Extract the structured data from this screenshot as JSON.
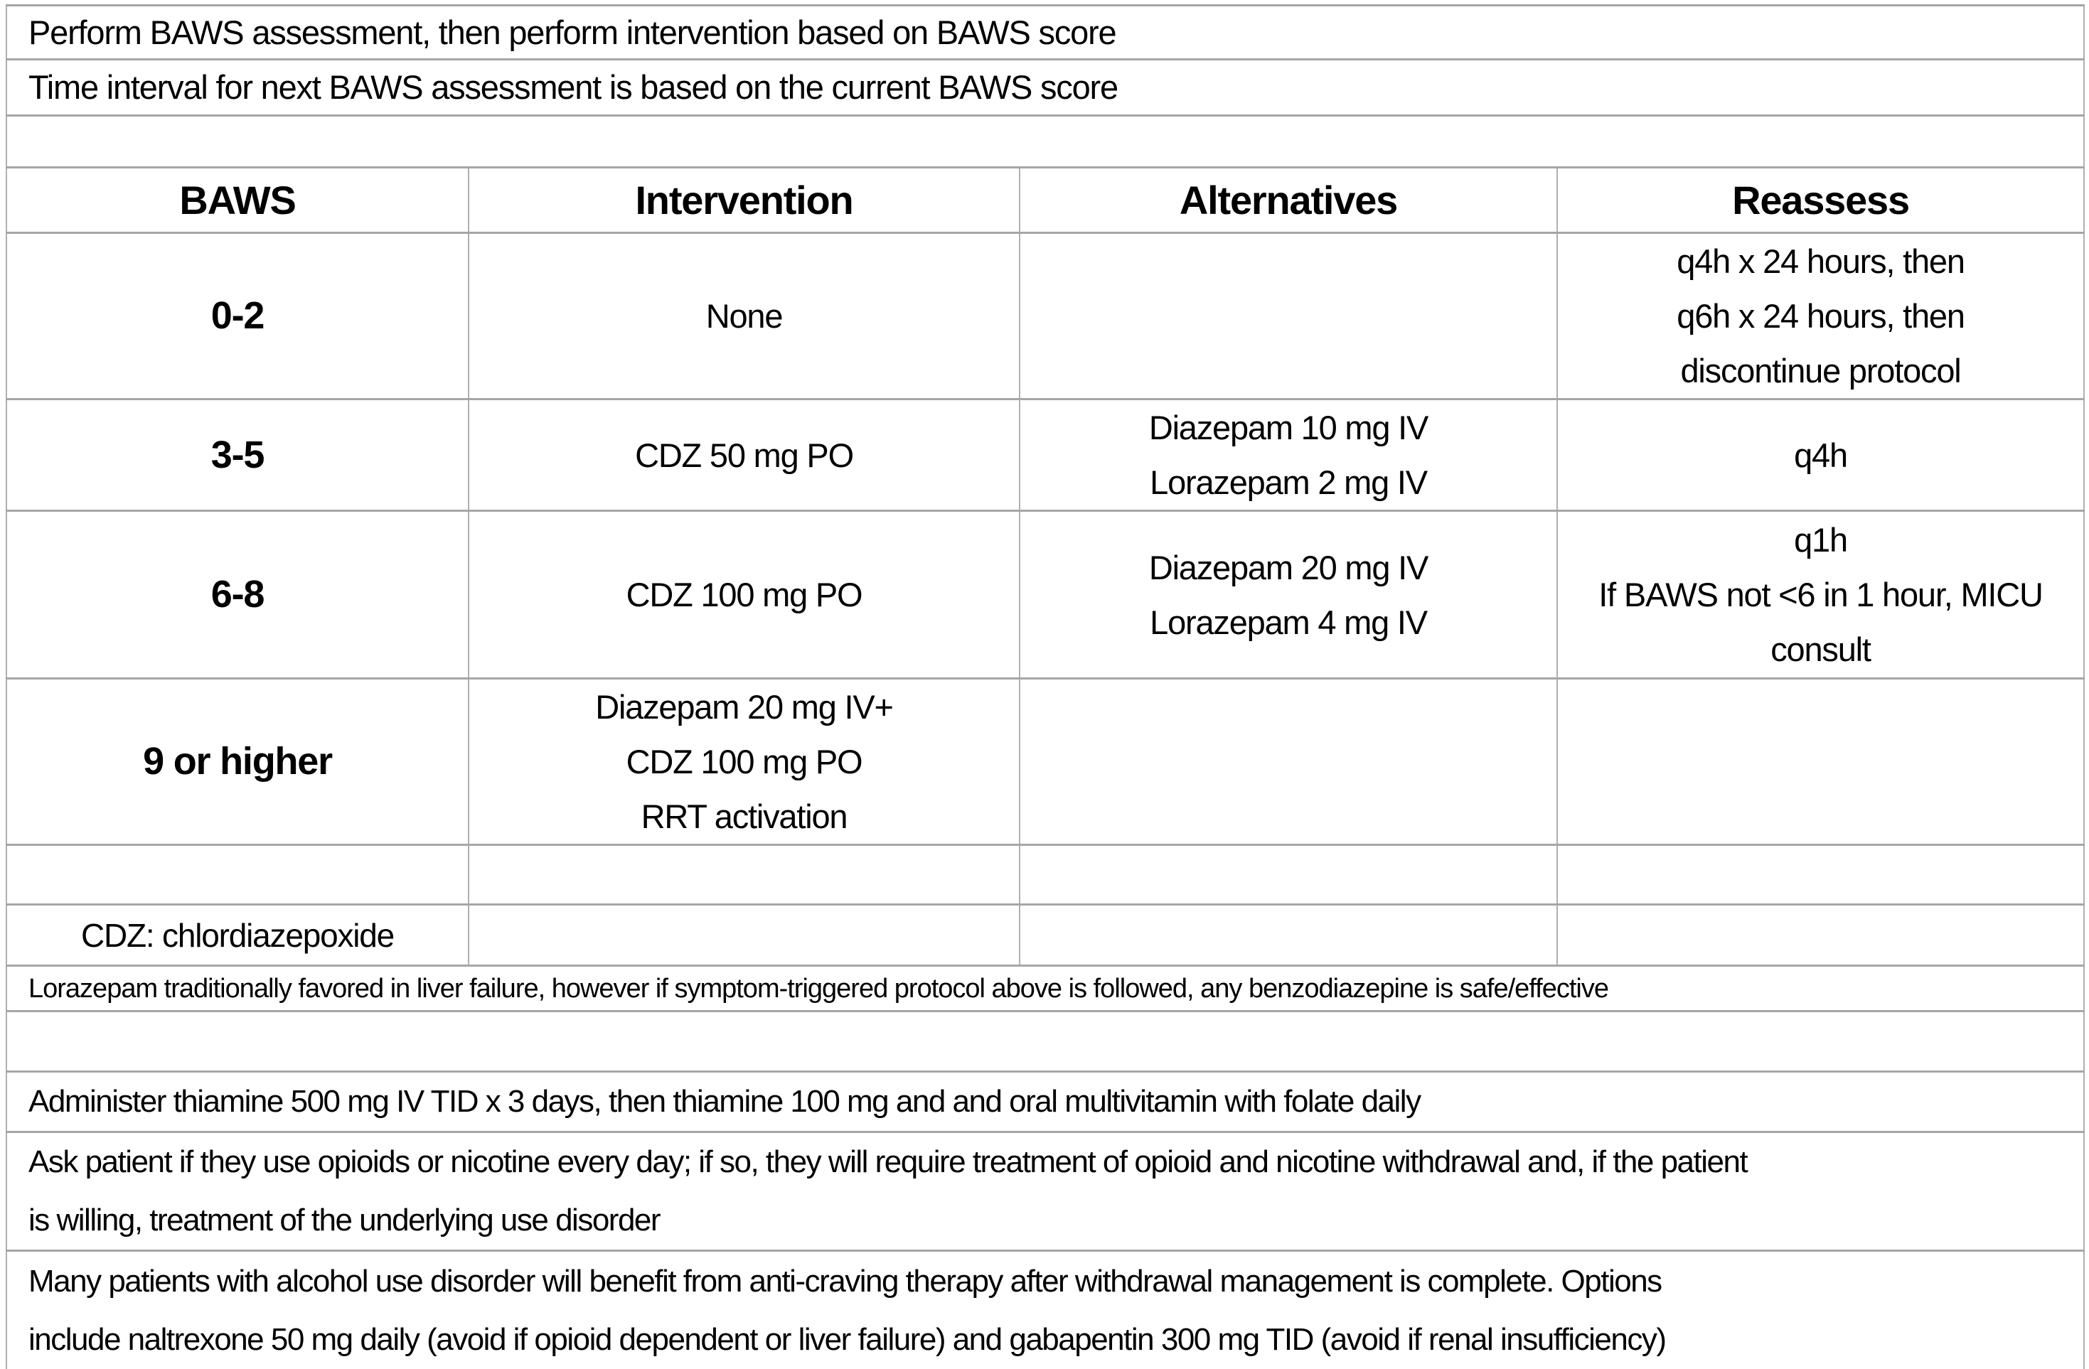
{
  "notes_top": {
    "line1": "Perform BAWS assessment, then perform intervention based on BAWS score",
    "line2": "Time interval for next BAWS assessment is based on the current BAWS score"
  },
  "table": {
    "headers": {
      "baws": "BAWS",
      "intervention": "Intervention",
      "alternatives": "Alternatives",
      "reassess": "Reassess"
    },
    "rows": [
      {
        "baws": "0-2",
        "intervention": "None",
        "alternatives": "",
        "reassess": "q4h x 24 hours, then\nq6h  x 24 hours, then\ndiscontinue protocol"
      },
      {
        "baws": "3-5",
        "intervention": "CDZ 50 mg PO",
        "alternatives": "Diazepam 10 mg IV\nLorazepam 2 mg IV",
        "reassess": "q4h"
      },
      {
        "baws": "6-8",
        "intervention": "CDZ 100 mg PO",
        "alternatives": "Diazepam 20 mg IV\nLorazepam 4 mg IV",
        "reassess": "q1h\nIf BAWS not <6 in 1 hour, MICU\nconsult"
      },
      {
        "baws": "9 or higher",
        "intervention": "Diazepam 20 mg IV+\nCDZ 100 mg PO\nRRT activation",
        "alternatives": "",
        "reassess": ""
      }
    ]
  },
  "footnotes": {
    "cdz": "CDZ: chlordiazepoxide",
    "lorazepam": "Lorazepam traditionally favored in liver failure, however if symptom-triggered protocol above is followed, any benzodiazepine is safe/effective"
  },
  "notes_bottom": {
    "thiamine": "Administer thiamine 500 mg IV TID x 3 days, then thiamine 100 mg and and oral multivitamin with folate daily",
    "opioids": "Ask patient if they use opioids or nicotine every day; if so, they will require treatment of opioid and nicotine withdrawal and, if the patient\nis willing, treatment of the underlying use disorder",
    "anticraving": "Many patients with alcohol use disorder will benefit from anti-craving therapy after withdrawal management is complete. Options\ninclude naltrexone 50 mg daily (avoid if opioid dependent or liver failure) and gabapentin 300 mg TID (avoid if renal insufficiency)"
  },
  "colors": {
    "border_horizontal": "#a6a6a6",
    "border_vertical": "#b0b0b0",
    "text": "#000000",
    "background": "#ffffff"
  }
}
